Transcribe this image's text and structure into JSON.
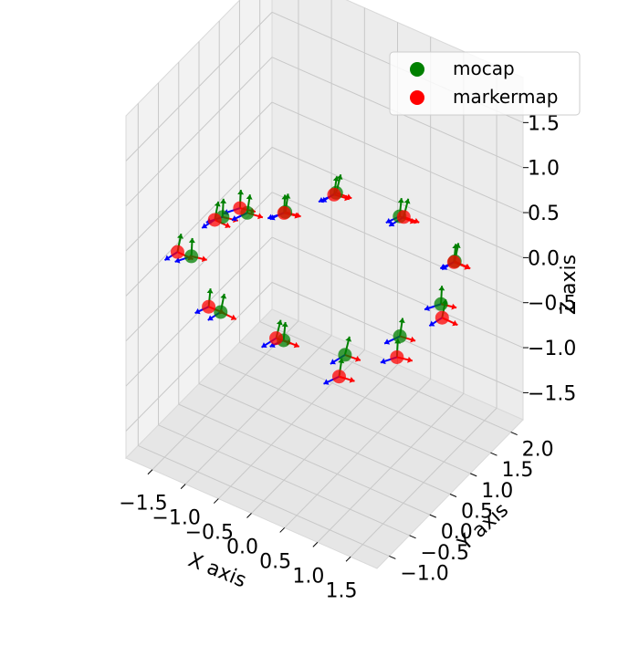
{
  "chart_data": {
    "type": "scatter3d",
    "xlabel": "X axis",
    "ylabel": "Y axis",
    "zlabel": "Z axis",
    "xticks": [
      "−1.5",
      "−1.0",
      "−0.5",
      "0.0",
      "0.5",
      "1.0",
      "1.5"
    ],
    "yticks": [
      "−1.0",
      "−0.5",
      "0.0",
      "0.5",
      "1.0",
      "1.5",
      "2.0"
    ],
    "zticks": [
      "−1.5",
      "−1.0",
      "−0.5",
      "0.0",
      "0.5",
      "1.0",
      "1.5"
    ],
    "xlim": [
      -1.9,
      1.9
    ],
    "ylim": [
      -1.3,
      2.3
    ],
    "zlim": [
      -1.8,
      2.0
    ],
    "grid": true,
    "legend_position": "top-right",
    "series": [
      {
        "name": "mocap",
        "color": "#008000",
        "points": [
          [
            -1.39,
            0.25,
            0.33
          ],
          [
            -0.9,
            1.0,
            0.2
          ],
          [
            -0.45,
            1.52,
            0.32
          ],
          [
            0.4,
            1.7,
            0.25
          ],
          [
            1.45,
            1.35,
            0.25
          ],
          [
            1.72,
            0.57,
            0.22
          ],
          [
            1.62,
            -0.28,
            0.22
          ],
          [
            1.12,
            -0.82,
            0.1
          ],
          [
            0.32,
            -1.03,
            0.1
          ],
          [
            -0.62,
            -1.05,
            0.12
          ],
          [
            -1.34,
            -0.6,
            0.3
          ],
          [
            -1.2,
            0.55,
            0.3
          ]
        ]
      },
      {
        "name": "markermap",
        "color": "#ff0000",
        "points": [
          [
            -1.49,
            0.22,
            0.28
          ],
          [
            -0.95,
            1.05,
            0.15
          ],
          [
            -0.5,
            1.55,
            0.27
          ],
          [
            0.45,
            1.72,
            0.25
          ],
          [
            1.45,
            1.33,
            0.25
          ],
          [
            1.78,
            0.5,
            0.12
          ],
          [
            1.6,
            -0.32,
            0.0
          ],
          [
            1.05,
            -0.85,
            -0.15
          ],
          [
            0.22,
            -1.05,
            0.1
          ],
          [
            -0.82,
            -1.02,
            0.1
          ],
          [
            -1.55,
            -0.6,
            0.28
          ],
          [
            -1.28,
            0.5,
            0.35
          ]
        ]
      }
    ]
  }
}
